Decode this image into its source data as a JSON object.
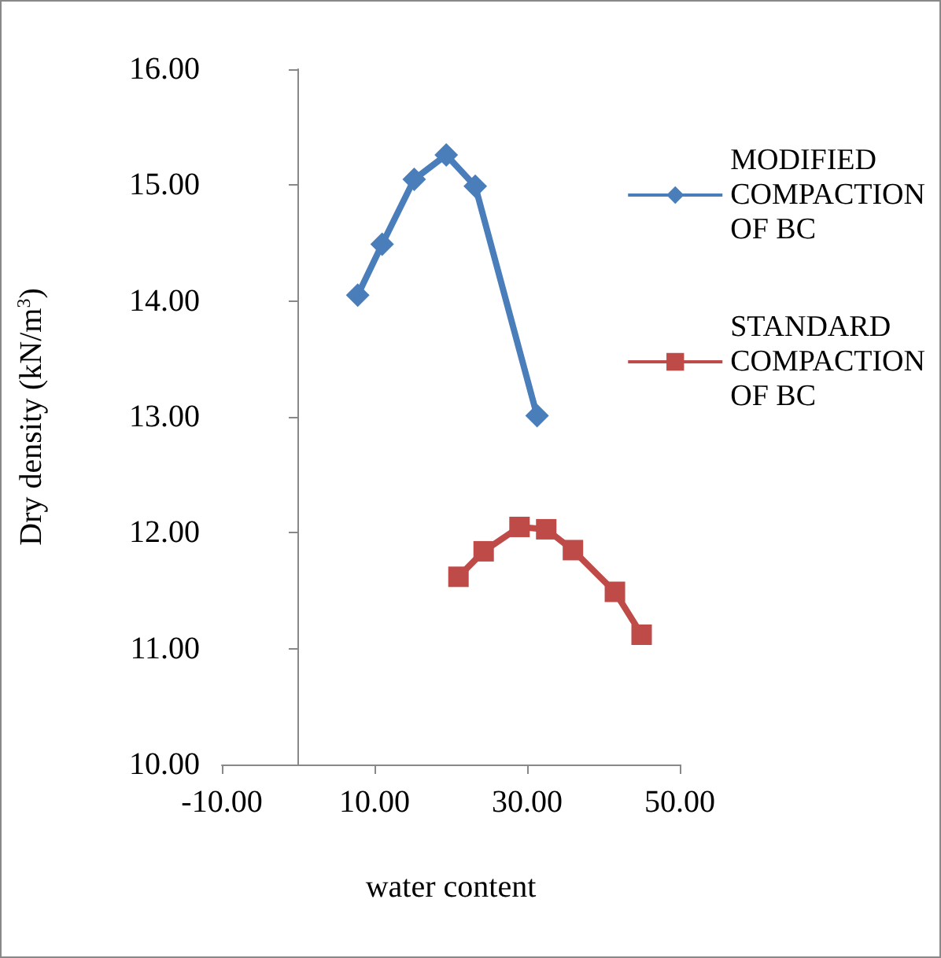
{
  "chart_data": {
    "type": "line",
    "xlabel": "water content",
    "ylabel": "Dry density (kN/m$^{3}$)",
    "xlim": [
      -10,
      50
    ],
    "xticks": [
      {
        "value": -10,
        "label": "-10.00"
      },
      {
        "value": 10,
        "label": "10.00"
      },
      {
        "value": 30,
        "label": "30.00"
      },
      {
        "value": 50,
        "label": "50.00"
      }
    ],
    "ylim": [
      10,
      16
    ],
    "yticks": [
      {
        "value": 10,
        "label": "10.00"
      },
      {
        "value": 11,
        "label": "11.00"
      },
      {
        "value": 12,
        "label": "12.00"
      },
      {
        "value": 13,
        "label": "13.00"
      },
      {
        "value": 14,
        "label": "14.00"
      },
      {
        "value": 15,
        "label": "15.00"
      },
      {
        "value": 16,
        "label": "16.00"
      }
    ],
    "grid": false,
    "legend": "right",
    "series": [
      {
        "name": "MODIFIED COMPACTION OF BC",
        "color": "#4a7ebb",
        "marker": "diamond",
        "x": [
          7.8,
          11.0,
          15.2,
          19.4,
          23.2,
          31.3
        ],
        "values": [
          14.05,
          14.49,
          15.05,
          15.26,
          14.99,
          13.01
        ]
      },
      {
        "name": "STANDARD COMPACTION OF BC",
        "color": "#be4b48",
        "marker": "square",
        "x": [
          21.0,
          24.3,
          29.0,
          32.5,
          36.0,
          41.5,
          45.0
        ],
        "values": [
          11.62,
          11.84,
          12.05,
          12.03,
          11.85,
          11.49,
          11.12
        ]
      }
    ]
  }
}
